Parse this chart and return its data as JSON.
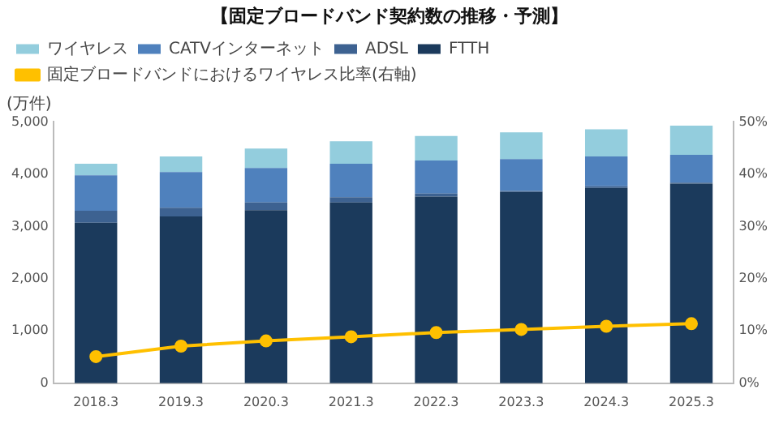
{
  "chart_data": {
    "type": "bar",
    "title": "【固定ブロードバンド契約数の推移・予測】",
    "ylabel": "(万件)",
    "categories": [
      "2018.3",
      "2019.3",
      "2020.3",
      "2021.3",
      "2022.3",
      "2023.3",
      "2024.3",
      "2025.3"
    ],
    "stacked": true,
    "series": [
      {
        "name": "FTTH",
        "color": "#1b3a5c",
        "values": [
          3070,
          3190,
          3310,
          3460,
          3570,
          3660,
          3740,
          3820
        ]
      },
      {
        "name": "ADSL",
        "color": "#3d6291",
        "values": [
          230,
          170,
          150,
          100,
          60,
          20,
          30,
          20
        ]
      },
      {
        "name": "CATVインターネット",
        "color": "#4f81bd",
        "values": [
          680,
          680,
          660,
          640,
          630,
          610,
          570,
          530
        ]
      },
      {
        "name": "ワイヤレス",
        "color": "#93cddd",
        "values": [
          220,
          300,
          370,
          430,
          470,
          510,
          520,
          560
        ]
      },
      {
        "name": "固定ブロードバンドにおけるワイヤレス比率(右軸)",
        "type": "line",
        "axis": "y2",
        "color": "#ffc000",
        "marker": "circle",
        "values": [
          5.1,
          7.1,
          8.1,
          8.9,
          9.7,
          10.3,
          10.9,
          11.4
        ]
      }
    ],
    "ylim": [
      0,
      5000
    ],
    "yticks": [
      0,
      {
        "value": 1000,
        "label": "1,000"
      },
      {
        "value": 2000,
        "label": "2,000"
      },
      {
        "value": 3000,
        "label": "3,000"
      },
      {
        "value": 4000,
        "label": "4,000"
      },
      {
        "value": 5000,
        "label": "5,000"
      }
    ],
    "y2lim": [
      0,
      50
    ],
    "y2ticks": [
      {
        "value": 0,
        "label": "0%"
      },
      {
        "value": 10,
        "label": "10%"
      },
      {
        "value": 20,
        "label": "20%"
      },
      {
        "value": 30,
        "label": "30%"
      },
      {
        "value": 40,
        "label": "40%"
      },
      {
        "value": 50,
        "label": "50%"
      }
    ],
    "grid": false,
    "legend": "top left"
  }
}
